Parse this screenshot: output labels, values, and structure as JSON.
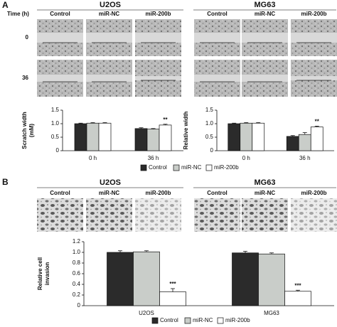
{
  "panel_a": {
    "label": "A",
    "time_label": "Time (h)",
    "groups": [
      {
        "title": "U2OS",
        "columns": [
          "Control",
          "miR-NC",
          "miR-200b"
        ]
      },
      {
        "title": "MG63",
        "columns": [
          "Control",
          "miR-NC",
          "miR-200b"
        ]
      }
    ],
    "rows": [
      "0",
      "36"
    ]
  },
  "panel_b": {
    "label": "B",
    "groups": [
      {
        "title": "U2OS",
        "columns": [
          "Control",
          "miR-NC",
          "miR-200b"
        ]
      },
      {
        "title": "MG63",
        "columns": [
          "Control",
          "miR-NC",
          "miR-200b"
        ]
      }
    ]
  },
  "chart_data": [
    {
      "type": "bar",
      "ylabel": [
        "Scratch width",
        "(mM)"
      ],
      "categories": [
        "0 h",
        "36 h"
      ],
      "ylim": [
        0,
        1.5
      ],
      "yticks": [
        0,
        0.5,
        {
          "value": 1,
          "label": "1.0"
        },
        1.5
      ],
      "legend": "bottom",
      "series": [
        {
          "name": "Control",
          "color": "#2b2b2b",
          "values": [
            1.0,
            0.82
          ],
          "errors": [
            0.02,
            0.03
          ]
        },
        {
          "name": "miR-NC",
          "color": "#c9cdc9",
          "values": [
            1.02,
            0.8
          ],
          "errors": [
            0.02,
            0.02
          ]
        },
        {
          "name": "miR-200b",
          "color": "#ffffff",
          "values": [
            1.02,
            0.95
          ],
          "errors": [
            0.02,
            0.03
          ],
          "annotations": [
            null,
            "**"
          ]
        }
      ]
    },
    {
      "type": "bar",
      "ylabel": [
        "Relative width"
      ],
      "categories": [
        "0 h",
        "36 h"
      ],
      "ylim": [
        0,
        1.5
      ],
      "yticks": [
        0,
        0.5,
        {
          "value": 1,
          "label": "1.0"
        },
        1.5
      ],
      "series": [
        {
          "color": "#2b2b2b",
          "values": [
            1.0,
            0.53
          ],
          "errors": [
            0.02,
            0.03
          ]
        },
        {
          "color": "#c9cdc9",
          "values": [
            1.02,
            0.6
          ],
          "errors": [
            0.02,
            0.07
          ]
        },
        {
          "color": "#ffffff",
          "values": [
            1.02,
            0.88
          ],
          "errors": [
            0.02,
            0.03
          ],
          "annotations": [
            null,
            "**"
          ]
        }
      ]
    },
    {
      "type": "bar",
      "ylabel": [
        "Relative cell",
        "invasion"
      ],
      "categories": [
        "U2OS",
        "MG63"
      ],
      "ylim": [
        0,
        1.2
      ],
      "yticks": [
        0,
        0.2,
        0.4,
        0.6,
        0.8,
        {
          "value": 1,
          "label": "1.0"
        },
        1.2
      ],
      "legend": "bottom",
      "series": [
        {
          "name": "Control",
          "color": "#2b2b2b",
          "values": [
            1.0,
            0.99
          ],
          "errors": [
            0.03,
            0.03
          ]
        },
        {
          "name": "miR-NC",
          "color": "#c9cdc9",
          "values": [
            1.01,
            0.97
          ],
          "errors": [
            0.02,
            0.02
          ]
        },
        {
          "name": "miR-200b",
          "color": "#ffffff",
          "values": [
            0.26,
            0.27
          ],
          "errors": [
            0.06,
            0.02
          ],
          "annotations": [
            "***",
            "***"
          ]
        }
      ]
    }
  ]
}
